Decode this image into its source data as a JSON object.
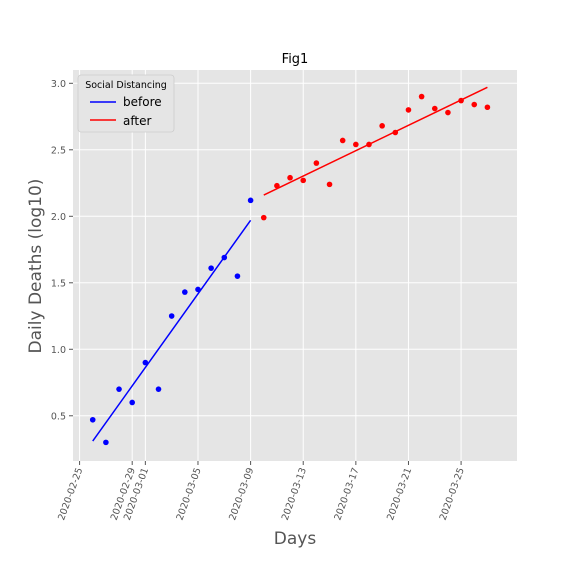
{
  "chart_data": {
    "type": "scatter",
    "title": "Fig1",
    "xlabel": "Days",
    "ylabel": "Daily Deaths (log10)",
    "x_is_date": true,
    "xlim": [
      "2020-02-24T12:00",
      "2020-03-29T06:00"
    ],
    "ylim": [
      0.16,
      3.1
    ],
    "x_ticks": [
      "2020-02-25",
      "2020-02-29",
      "2020-03-01",
      "2020-03-05",
      "2020-03-09",
      "2020-03-13",
      "2020-03-17",
      "2020-03-21",
      "2020-03-25"
    ],
    "y_ticks": [
      "0.5",
      "1.0",
      "1.5",
      "2.0",
      "2.5",
      "3.0"
    ],
    "grid": true,
    "legend": {
      "title": "Social Distancing",
      "position": "top-left",
      "entries": [
        {
          "label": "before",
          "color": "#0000ff"
        },
        {
          "label": "after",
          "color": "#ff0000"
        }
      ]
    },
    "series": [
      {
        "name": "before",
        "color": "#0000ff",
        "points": [
          {
            "x": "2020-02-26",
            "y": 0.47
          },
          {
            "x": "2020-02-27",
            "y": 0.3
          },
          {
            "x": "2020-02-28",
            "y": 0.7
          },
          {
            "x": "2020-02-29",
            "y": 0.6
          },
          {
            "x": "2020-03-01",
            "y": 0.9
          },
          {
            "x": "2020-03-02",
            "y": 0.7
          },
          {
            "x": "2020-03-03",
            "y": 1.25
          },
          {
            "x": "2020-03-04",
            "y": 1.43
          },
          {
            "x": "2020-03-05",
            "y": 1.45
          },
          {
            "x": "2020-03-06",
            "y": 1.61
          },
          {
            "x": "2020-03-07",
            "y": 1.69
          },
          {
            "x": "2020-03-08",
            "y": 1.55
          },
          {
            "x": "2020-03-09",
            "y": 2.12
          }
        ],
        "fit": [
          {
            "x": "2020-02-26",
            "y": 0.31
          },
          {
            "x": "2020-03-09",
            "y": 1.97
          }
        ]
      },
      {
        "name": "after",
        "color": "#ff0000",
        "points": [
          {
            "x": "2020-03-10",
            "y": 1.99
          },
          {
            "x": "2020-03-11",
            "y": 2.23
          },
          {
            "x": "2020-03-12",
            "y": 2.29
          },
          {
            "x": "2020-03-13",
            "y": 2.27
          },
          {
            "x": "2020-03-14",
            "y": 2.4
          },
          {
            "x": "2020-03-15",
            "y": 2.24
          },
          {
            "x": "2020-03-16",
            "y": 2.57
          },
          {
            "x": "2020-03-17",
            "y": 2.54
          },
          {
            "x": "2020-03-18",
            "y": 2.54
          },
          {
            "x": "2020-03-19",
            "y": 2.68
          },
          {
            "x": "2020-03-20",
            "y": 2.63
          },
          {
            "x": "2020-03-21",
            "y": 2.8
          },
          {
            "x": "2020-03-22",
            "y": 2.9
          },
          {
            "x": "2020-03-23",
            "y": 2.81
          },
          {
            "x": "2020-03-24",
            "y": 2.78
          },
          {
            "x": "2020-03-25",
            "y": 2.87
          },
          {
            "x": "2020-03-26",
            "y": 2.84
          },
          {
            "x": "2020-03-27",
            "y": 2.82
          }
        ],
        "fit": [
          {
            "x": "2020-03-10",
            "y": 2.16
          },
          {
            "x": "2020-03-27",
            "y": 2.97
          }
        ]
      }
    ]
  }
}
